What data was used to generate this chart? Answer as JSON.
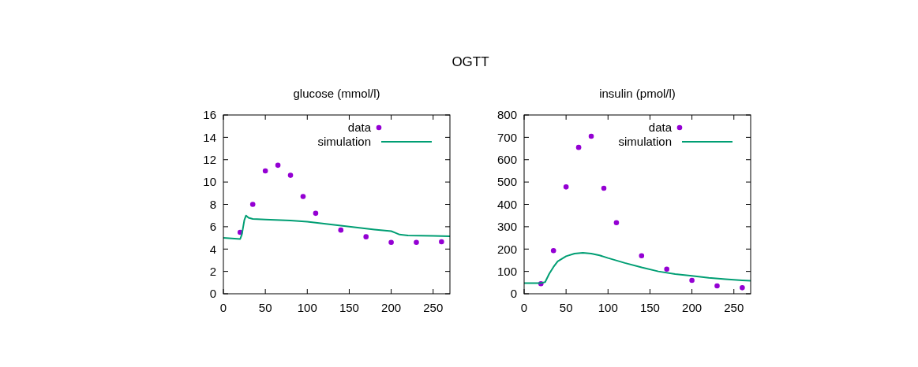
{
  "chart_data": [
    {
      "type": "scatter",
      "title": "glucose (mmol/l)",
      "annotations": [
        "OGTT"
      ],
      "xlim": [
        0,
        270
      ],
      "xticks": [
        0,
        50,
        100,
        150,
        200,
        250
      ],
      "ylim": [
        0,
        16
      ],
      "yticks": [
        0,
        2,
        4,
        6,
        8,
        10,
        12,
        14,
        16
      ],
      "legend": "top right",
      "grid": false,
      "series": [
        {
          "name": "data",
          "marker": "circle",
          "color": "#9400d3",
          "x": [
            20,
            35,
            50,
            65,
            80,
            95,
            110,
            140,
            170,
            200,
            230,
            260
          ],
          "values": [
            5.5,
            8.0,
            11.0,
            11.5,
            10.6,
            8.7,
            7.2,
            5.7,
            5.1,
            4.6,
            4.6,
            4.65
          ]
        },
        {
          "name": "simulation",
          "type": "line",
          "color": "#009e73",
          "x": [
            0,
            20,
            22,
            25,
            27,
            30,
            35,
            50,
            80,
            100,
            140,
            180,
            200,
            205,
            210,
            220,
            250,
            270
          ],
          "values": [
            5.0,
            4.9,
            5.3,
            6.6,
            7.0,
            6.8,
            6.7,
            6.65,
            6.55,
            6.45,
            6.1,
            5.75,
            5.6,
            5.45,
            5.3,
            5.22,
            5.18,
            5.15
          ]
        }
      ]
    },
    {
      "type": "scatter",
      "title": "insulin (pmol/l)",
      "xlim": [
        0,
        270
      ],
      "xticks": [
        0,
        50,
        100,
        150,
        200,
        250
      ],
      "ylim": [
        0,
        800
      ],
      "yticks": [
        0,
        100,
        200,
        300,
        400,
        500,
        600,
        700,
        800
      ],
      "legend": "top right",
      "grid": false,
      "series": [
        {
          "name": "data",
          "marker": "circle",
          "color": "#9400d3",
          "x": [
            20,
            35,
            50,
            65,
            80,
            95,
            110,
            140,
            170,
            200,
            230,
            260
          ],
          "values": [
            45,
            193,
            478,
            655,
            705,
            472,
            318,
            170,
            110,
            60,
            35,
            27
          ]
        },
        {
          "name": "simulation",
          "type": "line",
          "color": "#009e73",
          "x": [
            0,
            20,
            25,
            30,
            35,
            40,
            50,
            60,
            70,
            80,
            90,
            100,
            120,
            140,
            160,
            180,
            200,
            220,
            240,
            260,
            270
          ],
          "values": [
            48,
            48,
            52,
            90,
            120,
            145,
            168,
            180,
            183,
            180,
            172,
            160,
            138,
            118,
            100,
            88,
            80,
            71,
            65,
            60,
            58
          ]
        }
      ]
    }
  ]
}
